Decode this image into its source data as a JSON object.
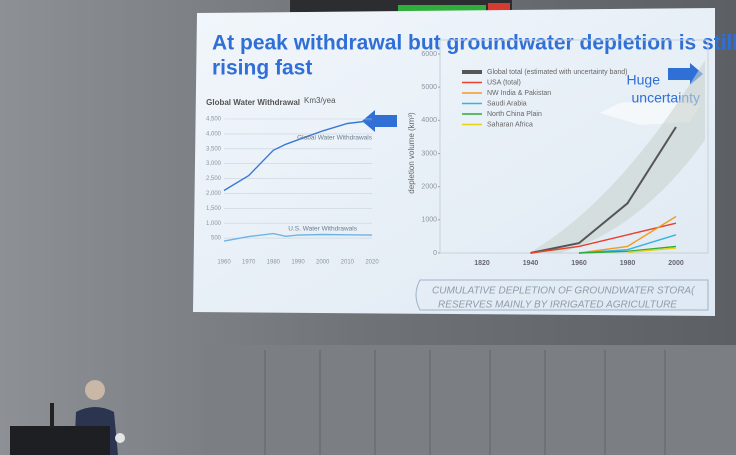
{
  "slide": {
    "title": [
      "At peak withdrawal but groundwater depletion is still",
      "rising fast"
    ],
    "annotation": [
      "Huge",
      "uncertainty"
    ],
    "caption": [
      "CUMULATIVE DEPLETION OF GROUNDWATER STORA(",
      "RESERVES MAINLY BY IRRIGATED AGRICULTURE"
    ]
  },
  "chart_data": [
    {
      "type": "line",
      "title": "Global Water Withdrawal",
      "subtitle": "Km3/yea",
      "x": [
        1960,
        1970,
        1980,
        1985,
        1990,
        2000,
        2010,
        2020
      ],
      "xlim": [
        1960,
        2020
      ],
      "xticks": [
        1960,
        1970,
        1980,
        1990,
        2000,
        2010,
        2020
      ],
      "ylim": [
        0,
        4500
      ],
      "yticks": [
        500,
        {
          "value": 1000,
          "label": "1,000"
        },
        {
          "value": 1500,
          "label": "1,500"
        },
        {
          "value": 2000,
          "label": "2,000"
        },
        {
          "value": 2500,
          "label": "2,500"
        },
        {
          "value": 3000,
          "label": "3,000"
        },
        {
          "value": 3500,
          "label": "3,500"
        },
        {
          "value": 4000,
          "label": "4,000"
        },
        {
          "value": 4500,
          "label": "4,500"
        }
      ],
      "grid": true,
      "series": [
        {
          "name": "Global Water Withdrawals",
          "color": "#3a78d6",
          "values": [
            2100,
            2600,
            3450,
            3650,
            3800,
            4100,
            4350,
            4450
          ]
        },
        {
          "name": "U.S. Water Withdrawals",
          "color": "#6db3e3",
          "values": [
            400,
            550,
            650,
            560,
            600,
            620,
            610,
            600
          ]
        }
      ]
    },
    {
      "type": "line",
      "ylabel": "depletion volume (km³)",
      "categories": [
        "1820",
        "1940",
        "1960",
        "1980",
        "2000"
      ],
      "ylim": [
        0,
        6000
      ],
      "yticks": [
        0,
        1000,
        2000,
        3000,
        4000,
        5000,
        6000
      ],
      "series": [
        {
          "name": "Global total (estimated with uncertainty band)",
          "color": "#555555",
          "values": [
            null,
            0,
            300,
            1500,
            3800
          ]
        },
        {
          "name": "USA (total)",
          "color": "#e8412c",
          "values": [
            null,
            0,
            200,
            550,
            900
          ]
        },
        {
          "name": "NW India & Pakistan",
          "color": "#f39a1f",
          "values": [
            null,
            null,
            0,
            200,
            1100
          ]
        },
        {
          "name": "Saudi Arabia",
          "color": "#33b3e6",
          "values": [
            null,
            null,
            0,
            100,
            550
          ]
        },
        {
          "name": "North China Plain",
          "color": "#2eaa3c",
          "values": [
            null,
            null,
            0,
            50,
            200
          ]
        },
        {
          "name": "Saharan Africa",
          "color": "#e3d21e",
          "values": [
            null,
            null,
            null,
            20,
            150
          ]
        }
      ]
    }
  ]
}
